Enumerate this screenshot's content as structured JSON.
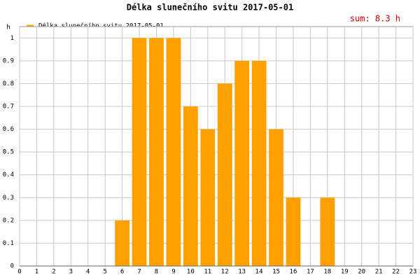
{
  "chart_data": {
    "type": "bar",
    "title": "Délka slunečního svitu 2017-05-01",
    "annotation": "sum: 8.3 h",
    "y_label": "h",
    "series": [
      {
        "name": "Délka slunečního svitu 2017-05-01",
        "color": "#ffa000",
        "x": [
          6,
          7,
          8,
          9,
          10,
          11,
          12,
          13,
          14,
          15,
          16,
          17,
          18
        ],
        "values": [
          0.2,
          1,
          1,
          1,
          0.7,
          0.6,
          0.8,
          0.9,
          0.9,
          0.6,
          0.3,
          0,
          0.3
        ]
      }
    ],
    "xlim": [
      0,
      23
    ],
    "xticks": [
      0,
      1,
      2,
      3,
      4,
      5,
      6,
      7,
      8,
      9,
      10,
      11,
      12,
      13,
      14,
      15,
      16,
      17,
      18,
      19,
      20,
      21,
      22,
      23
    ],
    "ylim": [
      0,
      1.05
    ],
    "yticks": [
      0,
      0.1,
      0.2,
      0.3,
      0.4,
      0.5,
      0.6,
      0.7,
      0.8,
      0.9,
      1
    ],
    "grid": true
  }
}
